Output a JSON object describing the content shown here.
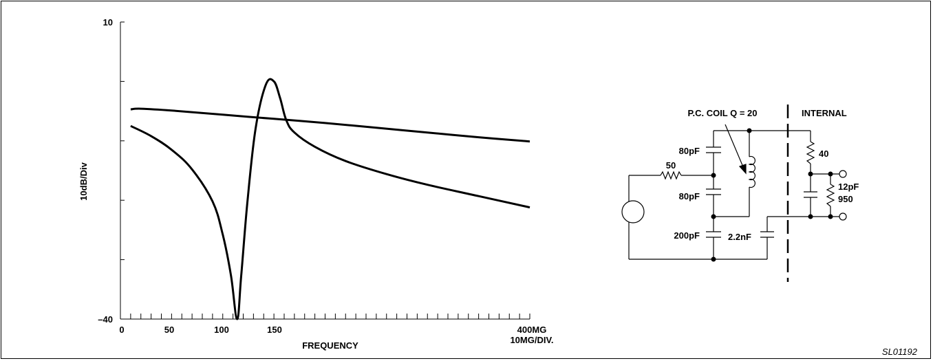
{
  "chart_data": {
    "type": "line",
    "ylabel": "10dB/Div",
    "xlabel": "FREQUENCY",
    "x_end_label": "400MG",
    "x_div_label": "10MG/DIV.",
    "y_ticks": [
      "10",
      "–40"
    ],
    "x_ticks": [
      "0",
      "50",
      "100",
      "150"
    ],
    "xlim": [
      0,
      400
    ],
    "ylim": [
      -40,
      10
    ],
    "series": [
      {
        "values_x": [
          10,
          20,
          50,
          100,
          150,
          200,
          250,
          300,
          350,
          400
        ],
        "values_y": [
          -4.7,
          -4.6,
          -4.9,
          -5.6,
          -6.3,
          -7.0,
          -7.8,
          -8.6,
          -9.4,
          -10.1
        ]
      },
      {
        "values_x": [
          10,
          30,
          50,
          70,
          90,
          100,
          108,
          114,
          118,
          124,
          132,
          142,
          150,
          156,
          162,
          170,
          190,
          220,
          260,
          300,
          350,
          400
        ],
        "values_y": [
          -7.5,
          -9.2,
          -11.5,
          -14.8,
          -20.2,
          -25.8,
          -32.6,
          -40.0,
          -32.8,
          -20.5,
          -8.0,
          -0.6,
          0.0,
          -2.8,
          -6.5,
          -8.6,
          -11.0,
          -13.4,
          -15.6,
          -17.4,
          -19.3,
          -21.2
        ]
      }
    ]
  },
  "schematic": {
    "coil_label": "P.C. COIL Q = 20",
    "internal_label": "INTERNAL",
    "cap_top": "80pF",
    "cap_mid": "80pF",
    "cap_bottom": "200pF",
    "cap_series": "2.2nF",
    "res_source": "50",
    "res_top": "40",
    "cap_internal": "12pF",
    "res_internal": "950"
  },
  "figure_ref": "SL01192"
}
